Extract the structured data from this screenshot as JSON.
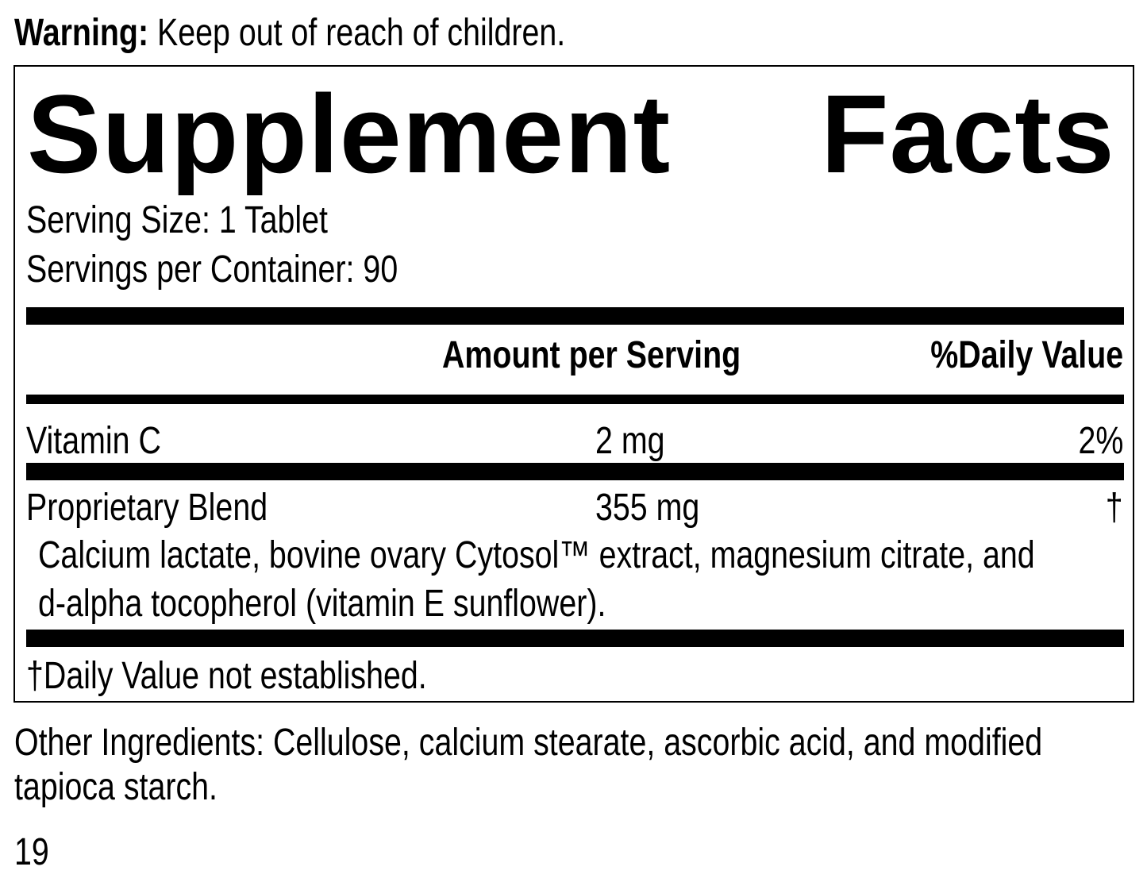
{
  "warning": {
    "label": "Warning:",
    "text": " Keep out of reach of children."
  },
  "title": {
    "word1": "Supplement",
    "word2": "Facts"
  },
  "serving_size": "Serving Size: 1 Tablet",
  "servings_per_container": "Servings per Container: 90",
  "headers": {
    "amount": "Amount per Serving",
    "dv": "%Daily Value"
  },
  "rows": [
    {
      "name": "Vitamin C",
      "amount": "2 mg",
      "dv": "2%"
    },
    {
      "name": "Proprietary Blend",
      "amount": "355 mg",
      "dv": "†"
    }
  ],
  "blend_line1": "Calcium lactate, bovine ovary Cytosol™ extract, magnesium citrate, and",
  "blend_line2": "d-alpha tocopherol (vitamin E sunflower).",
  "footnote": "†Daily Value not established.",
  "other_line1": "Other Ingredients: Cellulose, calcium stearate, ascorbic acid, and modified",
  "other_line2": "tapioca starch.",
  "page_number": "19"
}
